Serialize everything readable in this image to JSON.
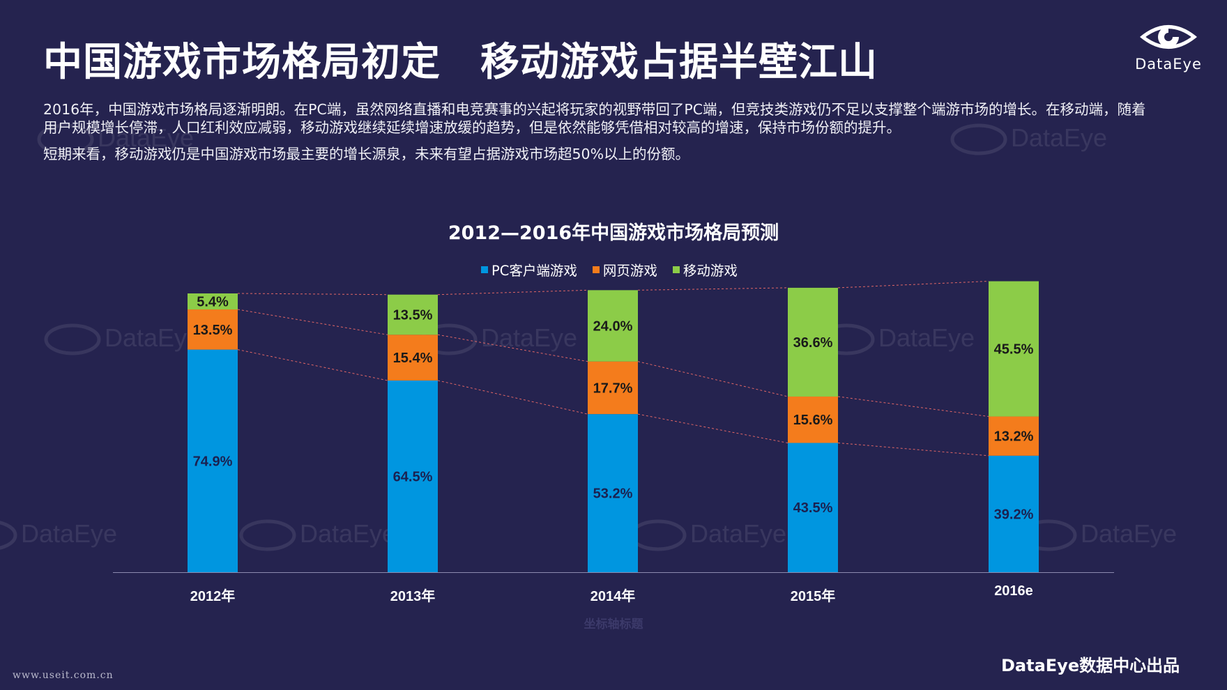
{
  "page": {
    "title": "中国游戏市场格局初定　移动游戏占据半壁江山",
    "paragraphs": [
      "2016年，中国游戏市场格局逐渐明朗。在PC端，虽然网络直播和电竞赛事的兴起将玩家的视野带回了PC端，但竞技类游戏仍不足以支撑整个端游市场的增长。在移动端，随着用户规模增长停滞，人口红利效应减弱，移动游戏继续延续增速放缓的趋势，但是依然能够凭借相对较高的增速，保持市场份额的提升。",
      "短期来看，移动游戏仍是中国游戏市场最主要的增长源泉，未来有望占据游戏市场超50%以上的份额。"
    ],
    "logo_text": "DataEye",
    "watermark_text": "DataEye",
    "credit": "DataEye数据中心出品",
    "source_url": "www.useit.com.cn"
  },
  "colors": {
    "background": "#25234f",
    "pc": "#0096e0",
    "web": "#f47c1c",
    "mobile": "#8ccc48",
    "trend_line": "#e06666"
  },
  "chart_data": {
    "type": "bar",
    "stacked": true,
    "title": "2012—2016年中国游戏市场格局预测",
    "categories": [
      "2012年",
      "2013年",
      "2014年",
      "2015年",
      "2016e"
    ],
    "series": [
      {
        "name": "PC客户端游戏",
        "color_key": "pc",
        "values": [
          74.9,
          64.5,
          53.2,
          43.5,
          39.2
        ],
        "labels": [
          "74.9%",
          "64.5%",
          "53.2%",
          "43.5%",
          "39.2%"
        ]
      },
      {
        "name": "网页游戏",
        "color_key": "web",
        "values": [
          13.5,
          15.4,
          17.7,
          15.6,
          13.2
        ],
        "labels": [
          "13.5%",
          "15.4%",
          "17.7%",
          "15.6%",
          "13.2%"
        ]
      },
      {
        "name": "移动游戏",
        "color_key": "mobile",
        "values": [
          5.4,
          13.5,
          24.0,
          36.6,
          45.5
        ],
        "labels": [
          "5.4%",
          "13.5%",
          "24.0%",
          "36.6%",
          "45.5%"
        ]
      }
    ],
    "xlabel": "坐标轴标题",
    "ylabel": "",
    "ylim": [
      0,
      93.8
    ],
    "legend_position": "top-center",
    "trend_lines": true,
    "grid": false
  }
}
